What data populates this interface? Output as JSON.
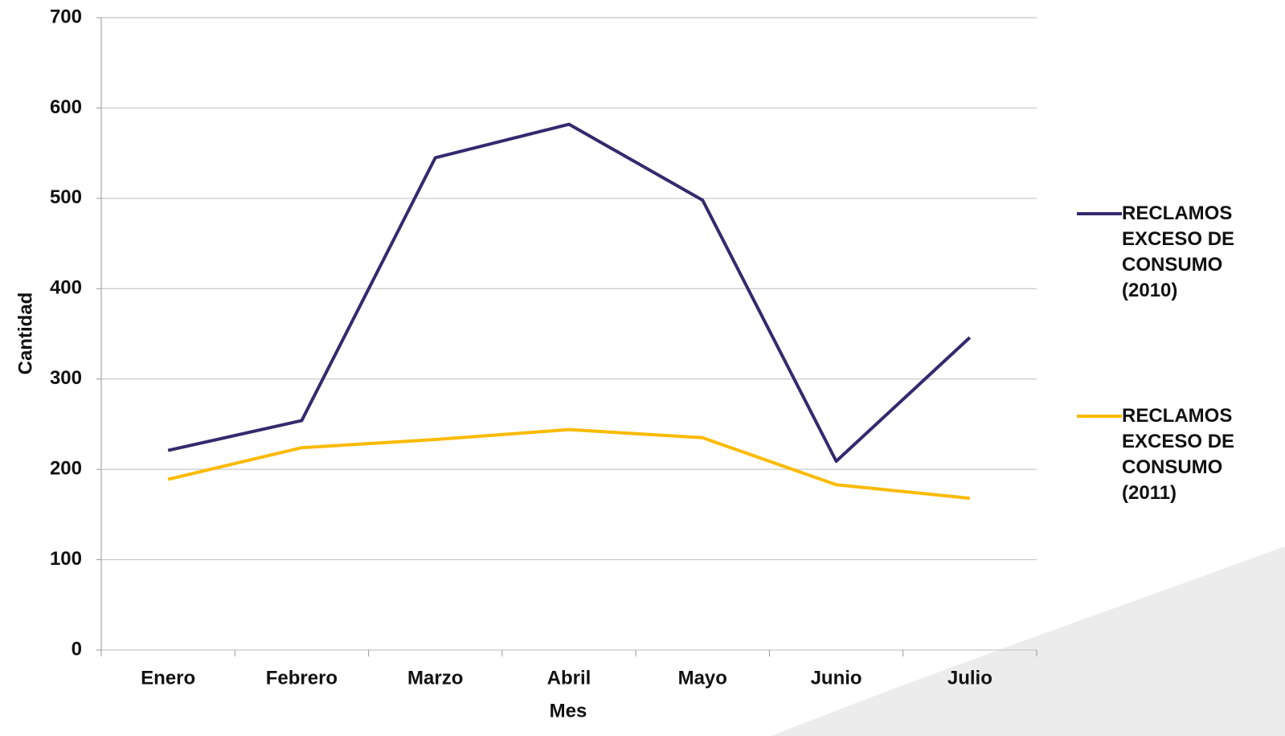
{
  "chart_data": {
    "type": "line",
    "x_label": "Mes",
    "y_label": "Cantidad",
    "categories": [
      "Enero",
      "Febrero",
      "Marzo",
      "Abril",
      "Mayo",
      "Junio",
      "Julio"
    ],
    "series": [
      {
        "name": "RECLAMOS EXCESO DE CONSUMO (2010)",
        "color": "#332a6e",
        "values": [
          221,
          254,
          545,
          582,
          498,
          209,
          346
        ]
      },
      {
        "name": "RECLAMOS EXCESO DE CONSUMO (2011)",
        "color": "#fbba00",
        "values": [
          189,
          224,
          233,
          244,
          235,
          183,
          168
        ]
      }
    ],
    "ylim": [
      0,
      700
    ],
    "yticks": [
      0,
      100,
      200,
      300,
      400,
      500,
      600,
      700
    ],
    "grid": true,
    "legend": "right"
  }
}
